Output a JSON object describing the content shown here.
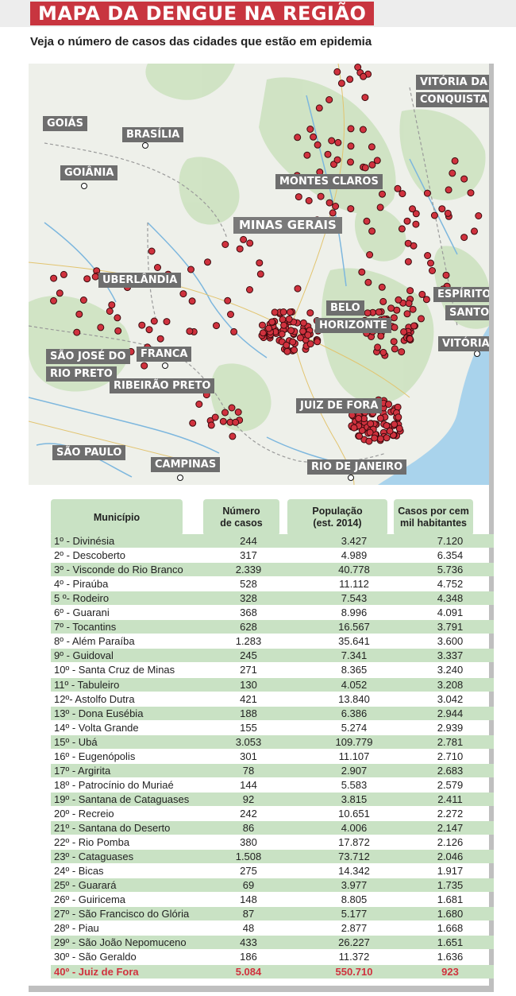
{
  "title": "MAPA DA DENGUE NA REGIÃO",
  "subtitle": "Veja o número de casos das cidades que estão em epidemia",
  "map_labels": {
    "goias": "GOIÁS",
    "brasilia": "BRASÍLIA",
    "goiania": "GOIÂNIA",
    "vitoria_conquista_1": "VITÓRIA DA",
    "vitoria_conquista_2": "CONQUISTA",
    "montes_claros": "MONTES CLAROS",
    "minas_gerais": "MINAS GERAIS",
    "uberlandia": "UBERLÂNDIA",
    "espirito_santo_1": "ESPÍRITO",
    "espirito_santo_2": "SANTO",
    "belo_horizonte_1": "BELO",
    "belo_horizonte_2": "HORIZONTE",
    "vitoria": "VITÓRIA",
    "sao_jose_1": "SÃO JOSÉ DO",
    "sao_jose_2": "RIO PRETO",
    "franca": "FRANCA",
    "ribeirao_preto": "RIBEIRÃO PRETO",
    "juiz_de_fora": "JUIZ DE FORA",
    "sao_paulo": "SÃO PAULO",
    "campinas": "CAMPINAS",
    "rio_de_janeiro": "RIO DE JANEIRO"
  },
  "map_colors": {
    "marker": "#d0323e",
    "land": "#eef0ea",
    "water": "#a9d3ec",
    "forest": "#cfe3c3",
    "label_bg": "#6e6e6e"
  },
  "table": {
    "headers": {
      "municipio": "Município",
      "casos_1": "Número",
      "casos_2": "de casos",
      "pop_1": "População",
      "pop_2": "(est. 2014)",
      "taxa_1": "Casos por cem",
      "taxa_2": "mil habitantes"
    },
    "rows": [
      {
        "name": "1º - Divinésia",
        "cases": "244",
        "pop": "3.427",
        "rate": "7.120"
      },
      {
        "name": "2º - Descoberto",
        "cases": "317",
        "pop": "4.989",
        "rate": "6.354"
      },
      {
        "name": "3º - Visconde do Rio Branco",
        "cases": "2.339",
        "pop": "40.778",
        "rate": "5.736"
      },
      {
        "name": "4º - Piraúba",
        "cases": "528",
        "pop": "11.112",
        "rate": "4.752"
      },
      {
        "name": "5 º- Rodeiro",
        "cases": "328",
        "pop": "7.543",
        "rate": "4.348"
      },
      {
        "name": "6º - Guarani",
        "cases": "368",
        "pop": "8.996",
        "rate": "4.091"
      },
      {
        "name": "7º - Tocantins",
        "cases": "628",
        "pop": "16.567",
        "rate": "3.791"
      },
      {
        "name": "8º - Além Paraíba",
        "cases": "1.283",
        "pop": "35.641",
        "rate": "3.600"
      },
      {
        "name": "9º - Guidoval",
        "cases": "245",
        "pop": "7.341",
        "rate": "3.337"
      },
      {
        "name": "10º - Santa Cruz de Minas",
        "cases": "271",
        "pop": "8.365",
        "rate": "3.240"
      },
      {
        "name": "11º - Tabuleiro",
        "cases": "130",
        "pop": "4.052",
        "rate": "3.208"
      },
      {
        "name": "12º- Astolfo Dutra",
        "cases": "421",
        "pop": "13.840",
        "rate": "3.042"
      },
      {
        "name": "13º - Dona Eusébia",
        "cases": "188",
        "pop": "6.386",
        "rate": "2.944"
      },
      {
        "name": "14º - Volta Grande",
        "cases": "155",
        "pop": "5.274",
        "rate": "2.939"
      },
      {
        "name": "15º - Ubá",
        "cases": "3.053",
        "pop": "109.779",
        "rate": "2.781"
      },
      {
        "name": "16º - Eugenópolis",
        "cases": "301",
        "pop": "11.107",
        "rate": "2.710"
      },
      {
        "name": "17º - Argirita",
        "cases": "78",
        "pop": "2.907",
        "rate": "2.683"
      },
      {
        "name": "18º - Patrocínio do Muriaé",
        "cases": "144",
        "pop": "5.583",
        "rate": "2.579"
      },
      {
        "name": "19º - Santana de Cataguases",
        "cases": "92",
        "pop": "3.815",
        "rate": "2.411"
      },
      {
        "name": "20º - Recreio",
        "cases": "242",
        "pop": "10.651",
        "rate": "2.272"
      },
      {
        "name": "21º - Santana do Deserto",
        "cases": "86",
        "pop": "4.006",
        "rate": "2.147"
      },
      {
        "name": "22º - Rio Pomba",
        "cases": "380",
        "pop": "17.872",
        "rate": "2.126"
      },
      {
        "name": "23º - Cataguases",
        "cases": "1.508",
        "pop": "73.712",
        "rate": "2.046"
      },
      {
        "name": "24º - Bicas",
        "cases": "275",
        "pop": "14.342",
        "rate": "1.917"
      },
      {
        "name": "25º - Guarará",
        "cases": "69",
        "pop": "3.977",
        "rate": "1.735"
      },
      {
        "name": "26º - Guiricema",
        "cases": "148",
        "pop": "8.805",
        "rate": "1.681"
      },
      {
        "name": "27º - São Francisco do Glória",
        "cases": "87",
        "pop": "5.177",
        "rate": "1.680"
      },
      {
        "name": "28º - Piau",
        "cases": "48",
        "pop": "2.877",
        "rate": "1.668"
      },
      {
        "name": "29º - São João Nepomuceno",
        "cases": "433",
        "pop": "26.227",
        "rate": "1.651"
      },
      {
        "name": "30º - São Geraldo",
        "cases": "186",
        "pop": "11.372",
        "rate": "1.636"
      },
      {
        "name": "40º - Juiz de Fora",
        "cases": "5.084",
        "pop": "550.710",
        "rate": "923"
      }
    ]
  }
}
